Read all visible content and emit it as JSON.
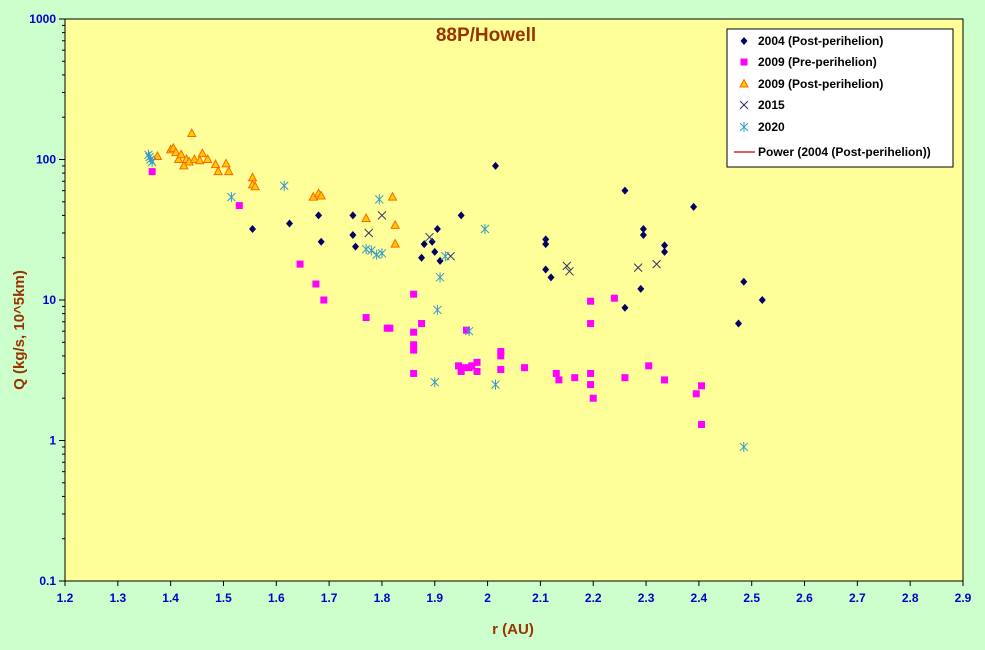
{
  "chart_data": {
    "type": "scatter",
    "title": "88P/Howell",
    "xlabel": "r (AU)",
    "ylabel": "Q (kg/s, 10^5km)",
    "xlim": [
      1.2,
      2.9
    ],
    "ylim": [
      0.1,
      1000
    ],
    "y_scale": "log",
    "grid": false,
    "legend_position": "top-right",
    "x_ticks": [
      "1.2",
      "1.3",
      "1.4",
      "1.5",
      "1.6",
      "1.7",
      "1.8",
      "1.9",
      "2",
      "2.1",
      "2.2",
      "2.3",
      "2.4",
      "2.5",
      "2.6",
      "2.7",
      "2.8",
      "2.9"
    ],
    "y_ticks": [
      "0.1",
      "1",
      "10",
      "100",
      "1000"
    ],
    "colors": {
      "plot_bg": "#ffff99",
      "page_bg": "#ccffcc",
      "title": "#993300",
      "axis_label": "#993300",
      "tick_label": "#0000cc"
    },
    "series": [
      {
        "name": "2004 (Post-perihelion)",
        "marker": "diamond",
        "color": "#000066",
        "points": [
          [
            1.555,
            32
          ],
          [
            1.625,
            35
          ],
          [
            1.68,
            40
          ],
          [
            1.685,
            26
          ],
          [
            1.745,
            40
          ],
          [
            1.745,
            29
          ],
          [
            1.75,
            24
          ],
          [
            1.875,
            20
          ],
          [
            1.88,
            25
          ],
          [
            1.895,
            26
          ],
          [
            1.9,
            22
          ],
          [
            1.905,
            32
          ],
          [
            1.91,
            19
          ],
          [
            1.95,
            40
          ],
          [
            2.015,
            90
          ],
          [
            2.11,
            27
          ],
          [
            2.11,
            25
          ],
          [
            2.11,
            16.5
          ],
          [
            2.12,
            14.5
          ],
          [
            2.26,
            60
          ],
          [
            2.26,
            8.8
          ],
          [
            2.29,
            12
          ],
          [
            2.295,
            32
          ],
          [
            2.295,
            29
          ],
          [
            2.335,
            24.5
          ],
          [
            2.335,
            22
          ],
          [
            2.39,
            46
          ],
          [
            2.475,
            6.8
          ],
          [
            2.485,
            13.5
          ],
          [
            2.52,
            10
          ]
        ]
      },
      {
        "name": "2009 (Pre-perihelion)",
        "marker": "square",
        "color": "#ff00ff",
        "points": [
          [
            1.365,
            82
          ],
          [
            1.53,
            47
          ],
          [
            1.645,
            18
          ],
          [
            1.675,
            13
          ],
          [
            1.69,
            10
          ],
          [
            1.77,
            7.5
          ],
          [
            1.81,
            6.3
          ],
          [
            1.815,
            6.3
          ],
          [
            1.86,
            11
          ],
          [
            1.86,
            5.9
          ],
          [
            1.86,
            4.8
          ],
          [
            1.86,
            4.4
          ],
          [
            1.86,
            3.0
          ],
          [
            1.875,
            6.8
          ],
          [
            1.945,
            3.4
          ],
          [
            1.95,
            3.1
          ],
          [
            1.955,
            3.3
          ],
          [
            1.96,
            6.1
          ],
          [
            1.965,
            3.3
          ],
          [
            1.97,
            3.4
          ],
          [
            1.98,
            3.6
          ],
          [
            1.98,
            3.1
          ],
          [
            2.025,
            4.3
          ],
          [
            2.025,
            4.0
          ],
          [
            2.025,
            3.2
          ],
          [
            2.07,
            3.3
          ],
          [
            2.13,
            3.0
          ],
          [
            2.135,
            2.7
          ],
          [
            2.165,
            2.8
          ],
          [
            2.195,
            9.8
          ],
          [
            2.195,
            6.8
          ],
          [
            2.195,
            3.0
          ],
          [
            2.195,
            2.5
          ],
          [
            2.2,
            2.0
          ],
          [
            2.24,
            10.3
          ],
          [
            2.26,
            2.8
          ],
          [
            2.305,
            3.4
          ],
          [
            2.335,
            2.7
          ],
          [
            2.395,
            2.15
          ],
          [
            2.405,
            2.45
          ],
          [
            2.405,
            1.3
          ]
        ]
      },
      {
        "name": "2009 (Post-perihelion)",
        "marker": "triangle",
        "color": "#ff6600",
        "fill": "#ffcc00",
        "points": [
          [
            1.375,
            105
          ],
          [
            1.4,
            117
          ],
          [
            1.405,
            120
          ],
          [
            1.41,
            112
          ],
          [
            1.415,
            100
          ],
          [
            1.42,
            108
          ],
          [
            1.425,
            90
          ],
          [
            1.43,
            100
          ],
          [
            1.435,
            96
          ],
          [
            1.44,
            153
          ],
          [
            1.445,
            100
          ],
          [
            1.455,
            98
          ],
          [
            1.46,
            110
          ],
          [
            1.47,
            100
          ],
          [
            1.485,
            92
          ],
          [
            1.49,
            82
          ],
          [
            1.505,
            93
          ],
          [
            1.51,
            82
          ],
          [
            1.555,
            74
          ],
          [
            1.555,
            66
          ],
          [
            1.56,
            64
          ],
          [
            1.67,
            54
          ],
          [
            1.68,
            57
          ],
          [
            1.685,
            55
          ],
          [
            1.77,
            38
          ],
          [
            1.82,
            54
          ],
          [
            1.825,
            34
          ],
          [
            1.825,
            25
          ]
        ]
      },
      {
        "name": "2015",
        "marker": "x",
        "color": "#333366",
        "points": [
          [
            1.775,
            30
          ],
          [
            1.8,
            40
          ],
          [
            1.89,
            28
          ],
          [
            1.93,
            20.5
          ],
          [
            2.15,
            17.5
          ],
          [
            2.155,
            16
          ],
          [
            2.285,
            17
          ],
          [
            2.32,
            18
          ]
        ]
      },
      {
        "name": "2020",
        "marker": "asterisk",
        "color": "#3399cc",
        "points": [
          [
            1.358,
            108
          ],
          [
            1.36,
            104
          ],
          [
            1.362,
            100
          ],
          [
            1.365,
            96
          ],
          [
            1.515,
            54
          ],
          [
            1.615,
            65
          ],
          [
            1.77,
            23
          ],
          [
            1.78,
            22.5
          ],
          [
            1.79,
            21
          ],
          [
            1.795,
            52
          ],
          [
            1.8,
            21.5
          ],
          [
            1.9,
            2.6
          ],
          [
            1.905,
            8.5
          ],
          [
            1.91,
            14.5
          ],
          [
            1.92,
            20.5
          ],
          [
            1.965,
            6.0
          ],
          [
            1.995,
            32
          ],
          [
            2.015,
            2.5
          ],
          [
            2.485,
            0.9
          ]
        ]
      }
    ],
    "trendline": {
      "name": "Power (2004 (Post-perihelion))",
      "color": "#cc0000",
      "shown_on_plot": false
    }
  }
}
